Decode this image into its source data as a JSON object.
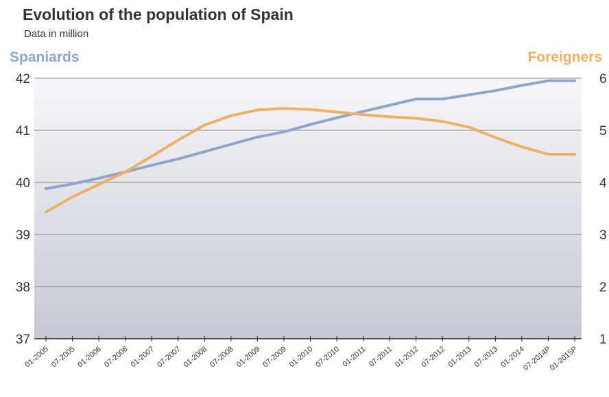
{
  "chart_data": {
    "type": "line",
    "title": "Evolution of the population of Spain",
    "subtitle": "Data in million",
    "categories": [
      "01-2005",
      "07-2005",
      "01-2006",
      "07-2006",
      "01-2007",
      "07-2007",
      "01-2008",
      "07-2008",
      "01-2009",
      "07-2009",
      "01-2010",
      "07-2010",
      "01-2011",
      "07-2011",
      "01-2012",
      "07-2012",
      "01-2013",
      "07-2013",
      "01-2014",
      "07-2014P",
      "01-2015P"
    ],
    "left_axis": {
      "label": "Spaniards",
      "ylim": [
        37,
        42
      ],
      "ticks": [
        "37",
        "38",
        "39",
        "40",
        "41",
        "42"
      ]
    },
    "right_axis": {
      "label": "Foreigners",
      "ylim": [
        1,
        6
      ],
      "ticks": [
        "1",
        "2",
        "3",
        "4",
        "5",
        "6"
      ]
    },
    "series": [
      {
        "name": "Spaniards",
        "axis": "left",
        "color": "#8ea5cd",
        "values": [
          39.88,
          39.97,
          40.08,
          40.2,
          40.33,
          40.45,
          40.59,
          40.73,
          40.87,
          40.97,
          41.11,
          41.24,
          41.36,
          41.48,
          41.6,
          41.6,
          41.68,
          41.76,
          41.86,
          41.95,
          41.95
        ]
      },
      {
        "name": "Foreigners",
        "axis": "right",
        "color": "#f0b063",
        "values": [
          3.43,
          3.72,
          3.96,
          4.2,
          4.5,
          4.81,
          5.1,
          5.28,
          5.39,
          5.42,
          5.4,
          5.35,
          5.3,
          5.26,
          5.23,
          5.17,
          5.06,
          4.86,
          4.68,
          4.54,
          4.54
        ]
      }
    ],
    "grid": true,
    "background_gradient": [
      "#f6f7fa",
      "#c5c9d3"
    ]
  }
}
